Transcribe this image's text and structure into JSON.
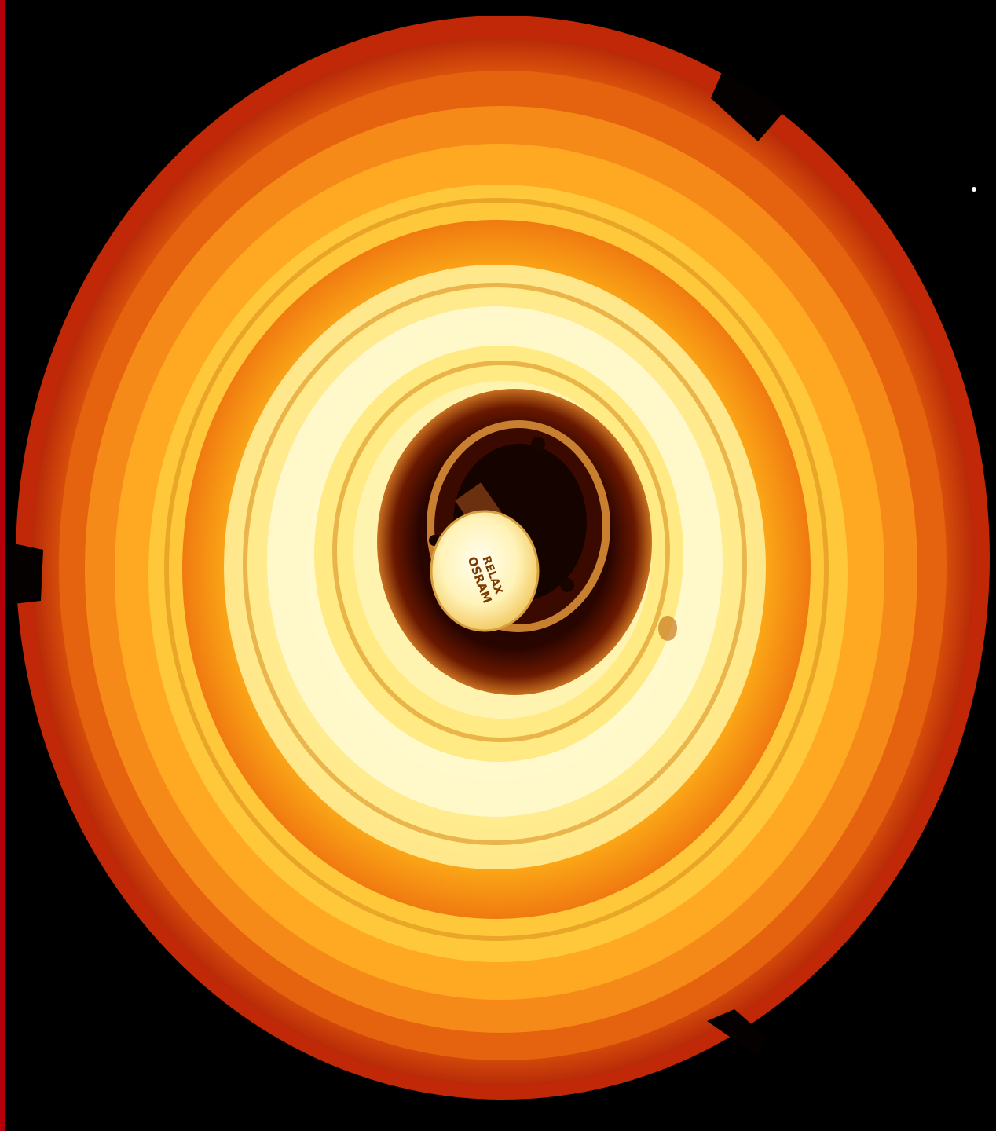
{
  "photo": {
    "subject": "lamp-shade-with-bulb",
    "palette": {
      "background": "#000000",
      "edge": "#b5000c",
      "outer_rim": "#c8320a",
      "mid_ring": "#f07a10",
      "inner_glow": "#ffe860",
      "hot_center": "#fffbe0",
      "socket_dark": "#2a0500",
      "bulb": "#fff6c0"
    },
    "bulb_label": {
      "line1": "RELAX",
      "line2": "OSRAM"
    }
  }
}
